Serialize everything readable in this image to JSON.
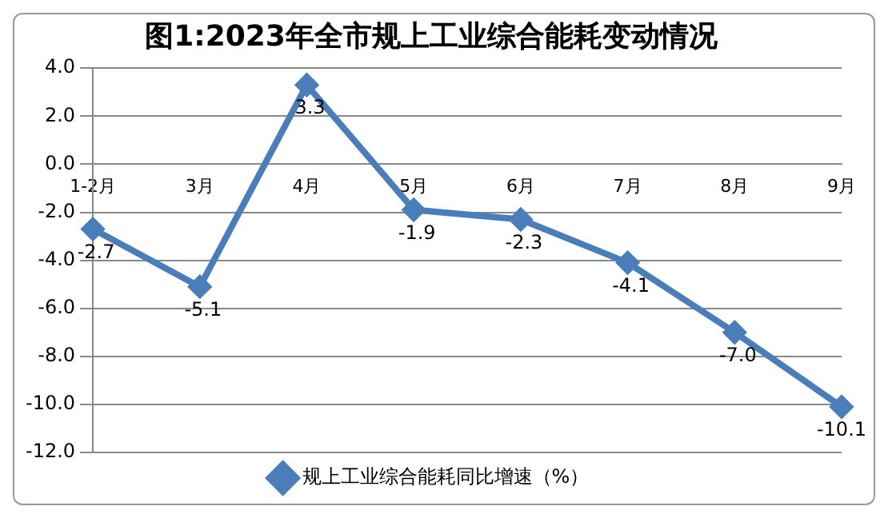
{
  "chart_data": {
    "type": "line",
    "title": "图1:2023年全市规上工业综合能耗变动情况",
    "categories": [
      "1-2月",
      "3月",
      "4月",
      "5月",
      "6月",
      "7月",
      "8月",
      "9月"
    ],
    "series": [
      {
        "name": "规上工业综合能耗同比增速（%）",
        "color": "#4a7ebb",
        "values": [
          -2.7,
          -5.1,
          3.3,
          -1.9,
          -2.3,
          -4.1,
          -7.0,
          -10.1
        ],
        "value_labels": [
          "-2.7",
          "-5.1",
          "3.3",
          "-1.9",
          "-2.3",
          "-4.1",
          "-7.0",
          "-10.1"
        ]
      }
    ],
    "ylim": [
      -12,
      4
    ],
    "yticks": [
      {
        "value": -12,
        "label": "-12.0"
      },
      {
        "value": -10,
        "label": "-10.0"
      },
      {
        "value": -8,
        "label": "-8.0"
      },
      {
        "value": -6,
        "label": "-6.0"
      },
      {
        "value": -4,
        "label": "-4.0"
      },
      {
        "value": -2,
        "label": "-2.0"
      },
      {
        "value": 0,
        "label": "0.0"
      },
      {
        "value": 2,
        "label": "2.0"
      },
      {
        "value": 4,
        "label": "4.0"
      }
    ],
    "grid": "y",
    "legend": "bottom",
    "marker": "diamond",
    "line_style": "solid"
  }
}
